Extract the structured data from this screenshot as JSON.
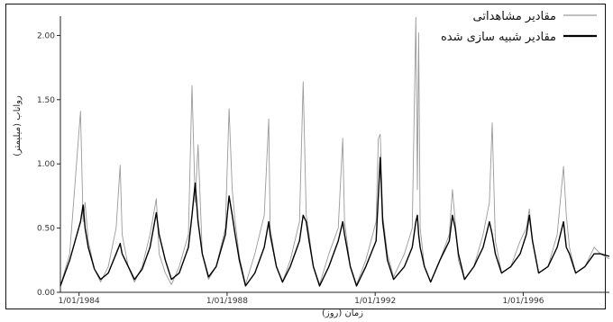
{
  "chart_data": {
    "type": "line",
    "title": "",
    "xlabel": "زمان (روز)",
    "ylabel": "رواناب (میلیمتر)",
    "ylim": [
      0,
      2.15
    ],
    "x_range": [
      "1983-07-01",
      "1998-04-30"
    ],
    "y_ticks": [
      "0.00",
      "0.50",
      "1.00",
      "1.50",
      "2.00"
    ],
    "x_ticks": [
      {
        "date": "1984-01-01",
        "label": "1/01/1984"
      },
      {
        "date": "1988-01-01",
        "label": "1/01/1988"
      },
      {
        "date": "1992-01-01",
        "label": "1/01/1992"
      },
      {
        "date": "1996-01-01",
        "label": "1/01/1996"
      }
    ],
    "grid": false,
    "legend_position": "top-right",
    "series": [
      {
        "name": "مقادیر مشاهداتی",
        "color": "#9a9a9a",
        "style": "thin",
        "x": [
          "1983-07-01",
          "1983-10-01",
          "1984-01-15",
          "1984-02-10",
          "1984-03-01",
          "1984-04-01",
          "1984-06-01",
          "1984-08-01",
          "1984-10-15",
          "1985-01-01",
          "1985-02-10",
          "1985-03-01",
          "1985-05-01",
          "1985-07-01",
          "1985-09-15",
          "1985-12-01",
          "1986-02-01",
          "1986-03-01",
          "1986-05-01",
          "1986-07-01",
          "1986-09-15",
          "1986-12-15",
          "1987-01-20",
          "1987-02-20",
          "1987-03-20",
          "1987-05-01",
          "1987-07-01",
          "1987-09-15",
          "1987-12-15",
          "1988-01-20",
          "1988-02-20",
          "1988-03-20",
          "1988-05-01",
          "1988-07-01",
          "1988-10-01",
          "1989-01-01",
          "1989-02-15",
          "1989-03-01",
          "1989-05-01",
          "1989-07-01",
          "1989-09-15",
          "1989-12-15",
          "1990-01-20",
          "1990-02-20",
          "1990-03-20",
          "1990-05-01",
          "1990-07-01",
          "1990-10-01",
          "1991-01-01",
          "1991-02-15",
          "1991-03-05",
          "1991-05-01",
          "1991-07-01",
          "1991-10-01",
          "1992-01-10",
          "1992-02-01",
          "1992-02-20",
          "1992-03-15",
          "1992-05-01",
          "1992-07-01",
          "1992-10-15",
          "1993-01-01",
          "1993-02-05",
          "1993-02-20",
          "1993-03-05",
          "1993-03-20",
          "1993-05-01",
          "1993-07-01",
          "1993-10-01",
          "1994-01-01",
          "1994-02-01",
          "1994-03-01",
          "1994-04-01",
          "1994-06-01",
          "1994-09-01",
          "1994-12-01",
          "1995-02-01",
          "1995-03-01",
          "1995-04-01",
          "1995-06-01",
          "1995-09-01",
          "1995-12-01",
          "1996-02-01",
          "1996-03-01",
          "1996-04-01",
          "1996-06-01",
          "1996-09-01",
          "1996-12-01",
          "1997-02-01",
          "1997-03-01",
          "1997-04-01",
          "1997-06-01",
          "1997-09-01",
          "1997-12-01",
          "1998-02-01",
          "1998-04-30"
        ],
        "values": [
          0.05,
          0.3,
          1.41,
          0.55,
          0.7,
          0.4,
          0.18,
          0.08,
          0.2,
          0.5,
          0.99,
          0.45,
          0.2,
          0.08,
          0.2,
          0.45,
          0.73,
          0.3,
          0.15,
          0.06,
          0.2,
          0.45,
          1.61,
          0.7,
          1.15,
          0.3,
          0.1,
          0.2,
          0.5,
          1.43,
          0.8,
          0.55,
          0.28,
          0.06,
          0.3,
          0.6,
          1.35,
          0.5,
          0.2,
          0.08,
          0.25,
          0.55,
          1.64,
          0.6,
          0.45,
          0.2,
          0.06,
          0.3,
          0.5,
          1.2,
          0.55,
          0.2,
          0.06,
          0.25,
          0.55,
          1.2,
          1.23,
          0.6,
          0.3,
          0.12,
          0.3,
          0.5,
          2.14,
          0.8,
          2.02,
          0.5,
          0.2,
          0.08,
          0.25,
          0.45,
          0.8,
          0.55,
          0.25,
          0.1,
          0.2,
          0.45,
          0.7,
          1.32,
          0.4,
          0.15,
          0.2,
          0.4,
          0.5,
          0.65,
          0.4,
          0.15,
          0.2,
          0.45,
          0.98,
          0.6,
          0.35,
          0.15,
          0.2,
          0.35,
          0.3,
          0.26
        ]
      },
      {
        "name": "مقادیر شبیه سازی شده",
        "color": "#000000",
        "style": "thick",
        "x": [
          "1983-07-01",
          "1983-10-01",
          "1984-01-15",
          "1984-02-10",
          "1984-03-01",
          "1984-04-01",
          "1984-06-01",
          "1984-08-01",
          "1984-10-15",
          "1985-01-01",
          "1985-02-10",
          "1985-03-01",
          "1985-05-01",
          "1985-07-01",
          "1985-09-15",
          "1985-12-01",
          "1986-02-01",
          "1986-03-01",
          "1986-05-01",
          "1986-07-01",
          "1986-09-15",
          "1986-12-15",
          "1987-01-20",
          "1987-02-20",
          "1987-03-20",
          "1987-05-01",
          "1987-07-01",
          "1987-09-15",
          "1987-12-15",
          "1988-01-20",
          "1988-02-20",
          "1988-03-20",
          "1988-05-01",
          "1988-07-01",
          "1988-10-01",
          "1989-01-01",
          "1989-02-15",
          "1989-03-01",
          "1989-05-01",
          "1989-07-01",
          "1989-09-15",
          "1989-12-15",
          "1990-01-20",
          "1990-02-20",
          "1990-03-20",
          "1990-05-01",
          "1990-07-01",
          "1990-10-01",
          "1991-01-01",
          "1991-02-15",
          "1991-03-05",
          "1991-05-01",
          "1991-07-01",
          "1991-10-01",
          "1992-01-10",
          "1992-02-01",
          "1992-02-20",
          "1992-03-15",
          "1992-05-01",
          "1992-07-01",
          "1992-10-15",
          "1993-01-01",
          "1993-02-05",
          "1993-02-20",
          "1993-03-05",
          "1993-03-20",
          "1993-05-01",
          "1993-07-01",
          "1993-10-01",
          "1994-01-01",
          "1994-02-01",
          "1994-03-01",
          "1994-04-01",
          "1994-06-01",
          "1994-09-01",
          "1994-12-01",
          "1995-02-01",
          "1995-03-01",
          "1995-04-01",
          "1995-06-01",
          "1995-09-01",
          "1995-12-01",
          "1996-02-01",
          "1996-03-01",
          "1996-04-01",
          "1996-06-01",
          "1996-09-01",
          "1996-12-01",
          "1997-02-01",
          "1997-03-01",
          "1997-04-01",
          "1997-06-01",
          "1997-09-01",
          "1997-12-01",
          "1998-02-01",
          "1998-04-30"
        ],
        "values": [
          0.05,
          0.25,
          0.55,
          0.68,
          0.5,
          0.35,
          0.18,
          0.1,
          0.15,
          0.3,
          0.38,
          0.3,
          0.2,
          0.1,
          0.18,
          0.35,
          0.62,
          0.45,
          0.25,
          0.1,
          0.15,
          0.35,
          0.6,
          0.85,
          0.55,
          0.3,
          0.12,
          0.2,
          0.45,
          0.75,
          0.6,
          0.45,
          0.25,
          0.05,
          0.15,
          0.35,
          0.55,
          0.45,
          0.2,
          0.08,
          0.2,
          0.4,
          0.6,
          0.55,
          0.4,
          0.2,
          0.05,
          0.2,
          0.4,
          0.55,
          0.45,
          0.2,
          0.05,
          0.2,
          0.4,
          0.75,
          1.05,
          0.55,
          0.25,
          0.1,
          0.2,
          0.35,
          0.55,
          0.6,
          0.45,
          0.35,
          0.2,
          0.08,
          0.25,
          0.4,
          0.6,
          0.5,
          0.3,
          0.1,
          0.2,
          0.35,
          0.55,
          0.45,
          0.3,
          0.15,
          0.2,
          0.3,
          0.45,
          0.6,
          0.4,
          0.15,
          0.2,
          0.35,
          0.55,
          0.35,
          0.3,
          0.15,
          0.2,
          0.3,
          0.3,
          0.28
        ]
      }
    ]
  }
}
